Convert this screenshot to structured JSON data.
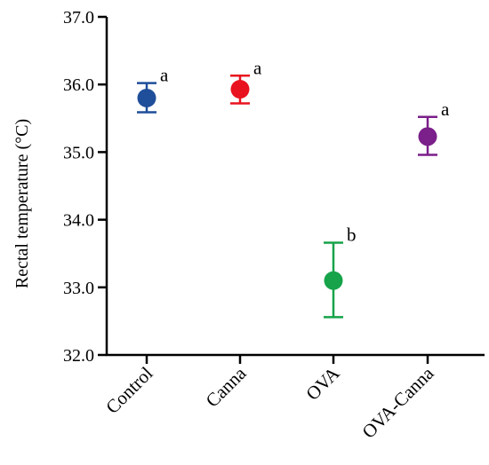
{
  "chart_data": {
    "type": "scatter",
    "title": "",
    "xlabel": "",
    "ylabel": "Rectal temperature (°C)",
    "ylim": [
      32.0,
      37.0
    ],
    "y_ticks": [
      "32.0",
      "33.0",
      "34.0",
      "35.0",
      "36.0",
      "37.0"
    ],
    "categories": [
      "Control",
      "Canna",
      "OVA",
      "OVA-Canna"
    ],
    "values": [
      35.8,
      35.93,
      33.1,
      35.23
    ],
    "error_low": [
      35.59,
      35.72,
      32.56,
      34.96
    ],
    "error_high": [
      36.02,
      36.13,
      33.66,
      35.52
    ],
    "significance": [
      "a",
      "a",
      "b",
      "a"
    ],
    "colors": [
      "#1f4e9a",
      "#e8131f",
      "#16a34a",
      "#7b1f8a"
    ],
    "grid": false,
    "legend": "none"
  }
}
